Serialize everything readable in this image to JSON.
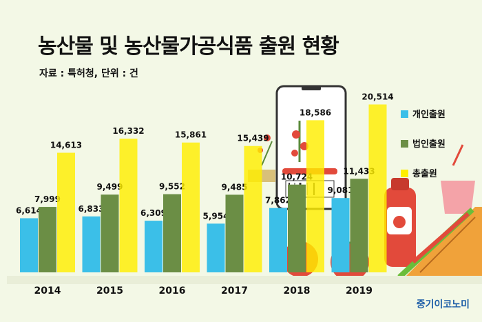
{
  "title": "농산물 및 농산물가공식품 출원 현황",
  "source": "자료 : 특허청, 단위 : 건",
  "brand": "중기이코노미",
  "colors": {
    "개인출원": "#3bbfe8",
    "법인출원": "#6b8e45",
    "총출원": "#ffee00"
  },
  "chart_data": {
    "type": "bar",
    "categories": [
      "2014",
      "2015",
      "2016",
      "2017",
      "2018",
      "2019"
    ],
    "series": [
      {
        "name": "개인출원",
        "values": [
          6614,
          6833,
          6309,
          5954,
          7862,
          9081
        ],
        "labels": [
          "6,614",
          "6,833",
          "6,309",
          "5,954",
          "7,862",
          "9,081"
        ]
      },
      {
        "name": "법인출원",
        "values": [
          7999,
          9499,
          9552,
          9485,
          10724,
          11433
        ],
        "labels": [
          "7,999",
          "9,499",
          "9,552",
          "9,485",
          "10,724",
          "11,433"
        ]
      },
      {
        "name": "총출원",
        "values": [
          14613,
          16332,
          15861,
          15439,
          18586,
          20514
        ],
        "labels": [
          "14,613",
          "16,332",
          "15,861",
          "15,439",
          "18,586",
          "20,514"
        ]
      }
    ],
    "legend_position": "right",
    "grid": false
  }
}
